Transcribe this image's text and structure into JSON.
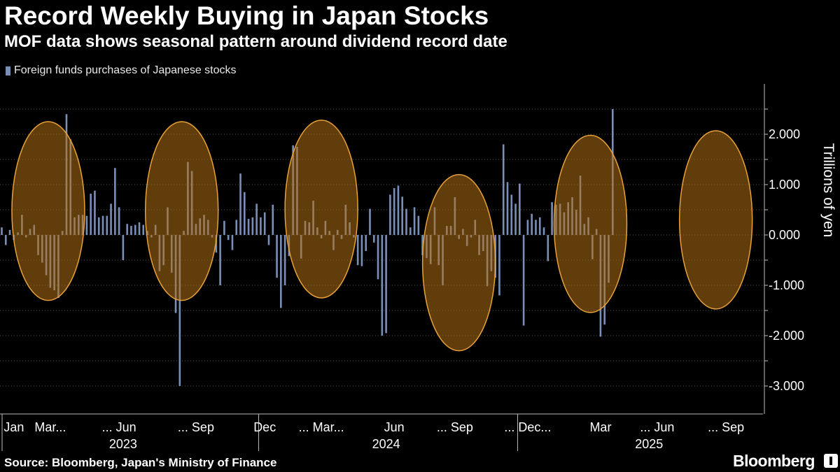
{
  "title": "Record Weekly Buying in Japan Stocks",
  "subtitle": "MOF data shows seasonal pattern around dividend record date",
  "legend": {
    "label": "Foreign funds purchases of Japanese stocks",
    "color": "#7a8fb8"
  },
  "source": "Source: Bloomberg, Japan's Ministry of Finance",
  "brand": "Bloomberg",
  "chart_data": {
    "type": "bar",
    "unit": "Trillions of yen",
    "ylabel": "Trillions of yen",
    "ylim": [
      -3.3,
      3.0
    ],
    "yticks": [
      {
        "value": 2,
        "label": "2.000"
      },
      {
        "value": 1,
        "label": "1.000"
      },
      {
        "value": 0,
        "label": "0.000"
      },
      {
        "value": -1,
        "label": "-1.000"
      },
      {
        "value": -2,
        "label": "-2.000"
      },
      {
        "value": -3,
        "label": "-3.000"
      }
    ],
    "x_month_labels": [
      {
        "week": 3,
        "label": "Jan"
      },
      {
        "week": 12,
        "label": "Mar..."
      },
      {
        "week": 29,
        "label": "... Jun"
      },
      {
        "week": 48,
        "label": "... Sep"
      },
      {
        "week": 65,
        "label": "Dec"
      },
      {
        "week": 79,
        "label": "... Mar..."
      },
      {
        "week": 97,
        "label": "Jun"
      },
      {
        "week": 112,
        "label": "... Sep"
      },
      {
        "week": 130,
        "label": "... Dec..."
      },
      {
        "week": 148,
        "label": "Mar"
      },
      {
        "week": 162,
        "label": "... Jun"
      },
      {
        "week": 179,
        "label": "... Sep"
      }
    ],
    "x_year_labels": [
      {
        "week": 30,
        "label": "2023"
      },
      {
        "week": 95,
        "label": "2024"
      },
      {
        "week": 160,
        "label": "2025"
      }
    ],
    "year_dividers": [
      0,
      64,
      128
    ],
    "highlight_ellipses": [
      {
        "center_week": 11.5,
        "ymax": 2.25,
        "ymin": -1.3
      },
      {
        "center_week": 44.5,
        "ymax": 2.25,
        "ymin": -1.3
      },
      {
        "center_week": 79,
        "ymax": 2.28,
        "ymin": -1.25
      },
      {
        "center_week": 113,
        "ymax": 1.2,
        "ymin": -2.3
      },
      {
        "center_week": 145.5,
        "ymax": 1.98,
        "ymin": -1.54
      },
      {
        "center_week": 176.5,
        "ymax": 2.07,
        "ymin": -1.47
      }
    ],
    "series": [
      {
        "name": "Foreign funds purchases of Japanese stocks",
        "start_week": 0,
        "values": [
          0.15,
          -0.2,
          0.1,
          -0.1,
          0.05,
          0.4,
          -0.05,
          0.12,
          0.2,
          -0.4,
          -0.55,
          -0.8,
          -1.05,
          -1.1,
          -1.25,
          0.08,
          2.4,
          1.9,
          0.35,
          0.4,
          0.4,
          0.38,
          0.82,
          0.88,
          0.35,
          0.38,
          0.38,
          0.62,
          1.33,
          0.55,
          -0.5,
          0.22,
          0.18,
          0.2,
          0.25,
          0.2,
          0.08,
          -0.05,
          0.2,
          -0.72,
          -0.6,
          0.55,
          -0.75,
          -1.55,
          -3.0,
          0.08,
          1.45,
          1.27,
          0.22,
          0.33,
          0.4,
          0.3,
          -0.05,
          -0.35,
          -1.0,
          0.28,
          -0.1,
          -0.3,
          0.3,
          1.22,
          0.85,
          0.32,
          0.35,
          0.62,
          0.35,
          0.45,
          -0.2,
          0.6,
          -0.85,
          -1.45,
          -1.0,
          -0.42,
          1.78,
          1.75,
          -0.47,
          0.28,
          0.25,
          0.68,
          0.15,
          -0.07,
          0.28,
          0.08,
          -0.3,
          0.1,
          -0.08,
          0.6,
          0.25,
          -0.05,
          -0.6,
          -0.62,
          -0.32,
          0.52,
          -0.15,
          -0.88,
          -2.0,
          -1.95,
          0.8,
          0.93,
          0.98,
          0.76,
          0.52,
          0.15,
          0.55,
          0.38,
          -0.4,
          -0.46,
          -0.58,
          0.55,
          -0.6,
          -1.0,
          0.18,
          0.18,
          0.75,
          -0.08,
          0.12,
          -0.22,
          -0.05,
          0.3,
          -0.4,
          -0.32,
          -1.02,
          -0.72,
          -0.85,
          -1.2,
          1.8,
          1.05,
          0.8,
          0.62,
          1.02,
          -1.8,
          0.3,
          0.42,
          0.3,
          0.35,
          0.15,
          -0.52,
          0.65,
          0.6,
          0.62,
          0.45,
          0.65,
          0.75,
          0.5,
          1.18,
          0.22,
          0.35,
          -0.48,
          0.12,
          -2.02,
          -1.78,
          -0.95,
          2.5
        ]
      }
    ]
  }
}
